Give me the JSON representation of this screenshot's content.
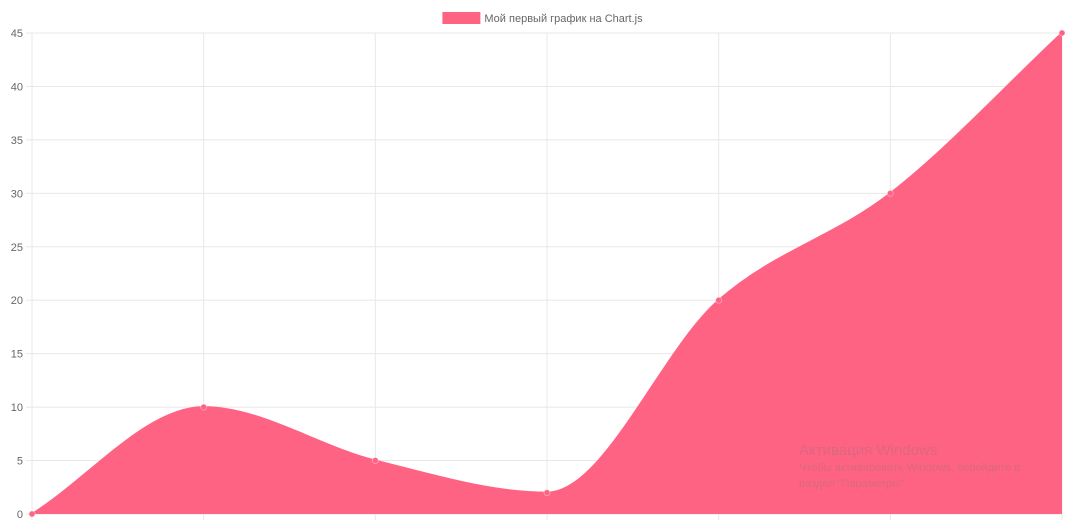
{
  "chart_data": {
    "type": "area",
    "categories": [
      "",
      "",
      "",
      "",
      "",
      "",
      ""
    ],
    "series": [
      {
        "name": "Мой первый график на Chart.js",
        "values": [
          0,
          10,
          5,
          2,
          20,
          30,
          45
        ],
        "color": "#ff6384"
      }
    ],
    "ylim": [
      0,
      45
    ],
    "yticks": [
      0,
      5,
      10,
      15,
      20,
      25,
      30,
      35,
      40,
      45
    ],
    "grid": true,
    "legend": "top-center",
    "gridColor": "#e8e8e8",
    "textColor": "#666666"
  },
  "watermark": {
    "title": "Активация Windows",
    "line1": "Чтобы активировать Windows, перейдите в",
    "line2": "раздел \"Параметры\"."
  }
}
